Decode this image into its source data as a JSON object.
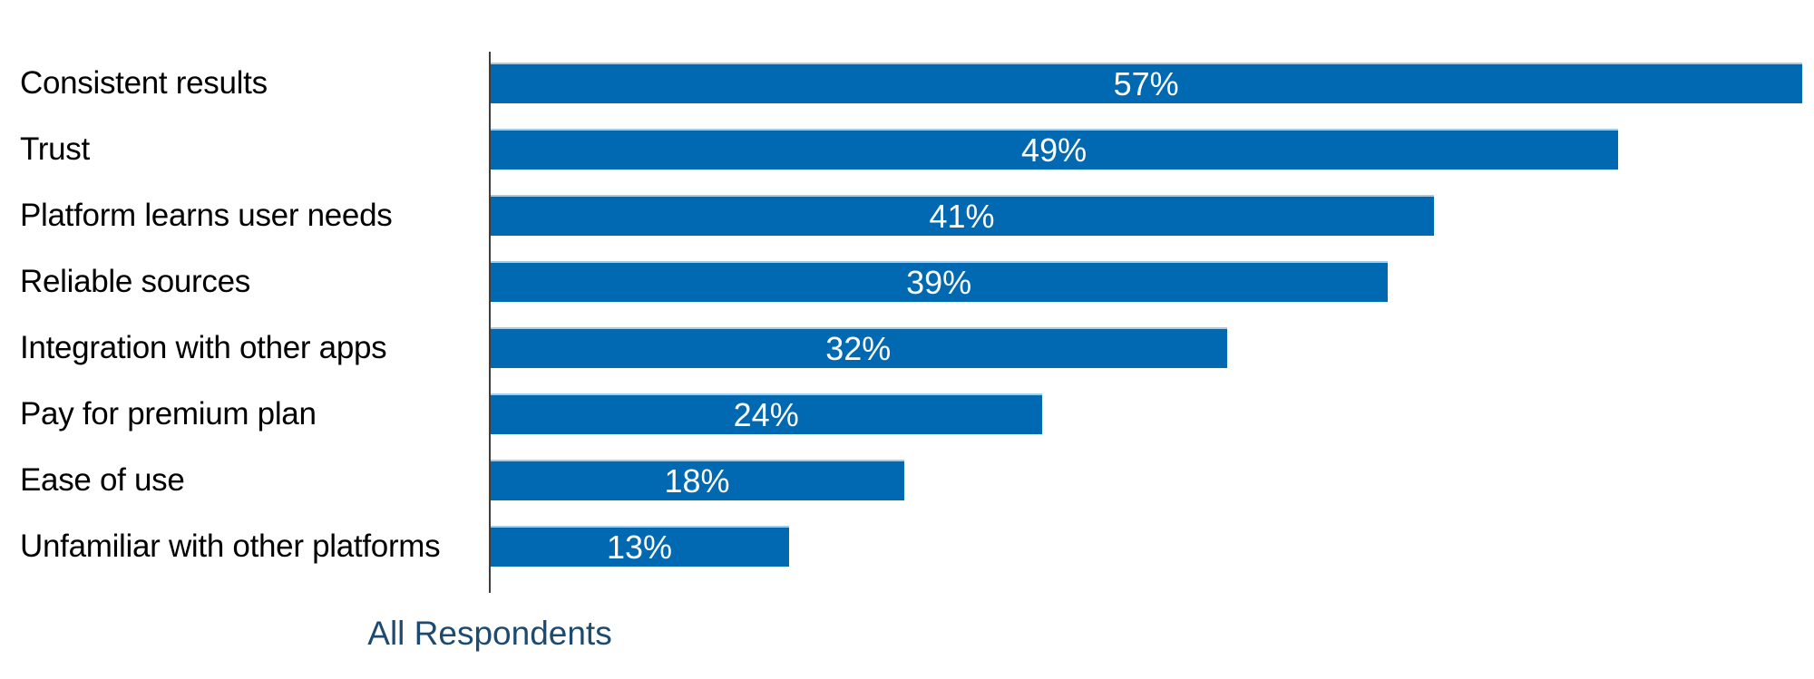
{
  "chart_data": {
    "type": "bar",
    "orientation": "horizontal",
    "title": "",
    "categories": [
      "Consistent results",
      "Trust",
      "Platform learns user needs",
      "Reliable sources",
      "Integration with other apps",
      "Pay for premium plan",
      "Ease of use",
      "Unfamiliar with other platforms"
    ],
    "values": [
      57,
      49,
      41,
      39,
      32,
      24,
      18,
      13
    ],
    "value_labels": [
      "57%",
      "49%",
      "41%",
      "39%",
      "32%",
      "24%",
      "18%",
      "13%"
    ],
    "footer_label": "All Respondents",
    "xlim": [
      0,
      57.5
    ],
    "grid": false,
    "legend": false,
    "colors": {
      "bar": "#0069B1",
      "bar_top_edge": "#A6CBE6",
      "value_label": "#FFFFFF",
      "category_label": "#000000",
      "axis_line": "#3D3D3D",
      "footer_label": "#1C4A70",
      "background": "#FFFFFF"
    }
  }
}
